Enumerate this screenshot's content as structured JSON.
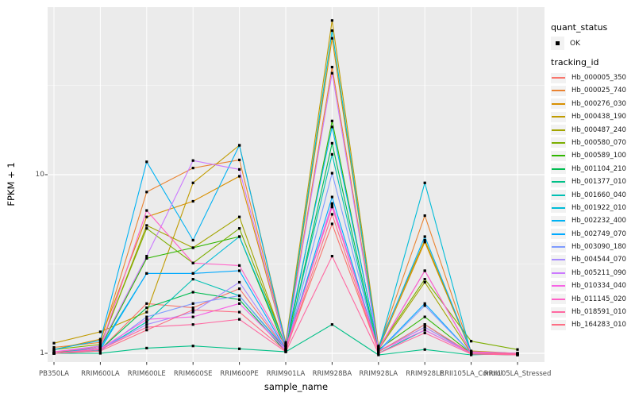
{
  "chart_data": {
    "type": "line",
    "title": "",
    "xlabel": "sample_name",
    "ylabel": "FPKM + 1",
    "y_scale": "log10",
    "y_tick_labels": [
      "1",
      "10"
    ],
    "y_tick_values": [
      1,
      10
    ],
    "y_minor_tick_values": [
      3.162,
      31.62
    ],
    "ylim": [
      0.89,
      87
    ],
    "grid": "on",
    "legend_position": "right",
    "categories": [
      "PB350LA",
      "RRIM600LA",
      "RRIM600LE",
      "RRIM600SE",
      "RRIM600PE",
      "RRIM901LA",
      "RRIM928BA",
      "RRIM928LA",
      "RRIM928LE",
      "RRII105LA_Control",
      "RRII105LA_Stressed"
    ],
    "legend": {
      "quant_status_title": "quant_status",
      "quant_status_items": [
        {
          "label": "OK",
          "shape": "black-square-point",
          "color": "#000000"
        }
      ],
      "tracking_id_title": "tracking_id"
    },
    "series": [
      {
        "tracking_id": "Hb_000005_350",
        "quant_status": "OK",
        "color": "#F8766D",
        "values": [
          1.02,
          1.05,
          1.9,
          1.8,
          2.3,
          1.05,
          5.3,
          1.03,
          1.4,
          1.0,
          0.98
        ]
      },
      {
        "tracking_id": "Hb_000025_740",
        "quant_status": "OK",
        "color": "#EA8331",
        "values": [
          1.08,
          1.15,
          8.0,
          10.9,
          12.1,
          1.12,
          40,
          1.08,
          5.9,
          1.02,
          1.0
        ]
      },
      {
        "tracking_id": "Hb_000276_030",
        "quant_status": "OK",
        "color": "#D89000",
        "values": [
          1.05,
          1.2,
          5.8,
          7.1,
          9.8,
          1.1,
          58,
          1.06,
          4.2,
          1.02,
          0.99
        ]
      },
      {
        "tracking_id": "Hb_000438_190",
        "quant_status": "OK",
        "color": "#C09B00",
        "values": [
          1.14,
          1.32,
          1.7,
          9.0,
          14.6,
          1.15,
          73,
          1.1,
          4.3,
          1.03,
          1.0
        ]
      },
      {
        "tracking_id": "Hb_000487_240",
        "quant_status": "OK",
        "color": "#A3A500",
        "values": [
          1.0,
          1.1,
          5.2,
          3.9,
          5.8,
          1.08,
          6.8,
          1.05,
          2.5,
          1.0,
          0.98
        ]
      },
      {
        "tracking_id": "Hb_000580_070",
        "quant_status": "OK",
        "color": "#7CAE00",
        "values": [
          1.05,
          1.12,
          5.0,
          3.2,
          5.0,
          1.1,
          6.6,
          1.07,
          2.6,
          1.17,
          1.05
        ]
      },
      {
        "tracking_id": "Hb_000589_100",
        "quant_status": "OK",
        "color": "#2FB600",
        "values": [
          1.0,
          1.08,
          3.4,
          3.9,
          4.5,
          1.05,
          20,
          1.05,
          1.6,
          1.0,
          0.99
        ]
      },
      {
        "tracking_id": "Hb_001104_210",
        "quant_status": "OK",
        "color": "#00BC51",
        "values": [
          1.0,
          1.05,
          1.8,
          2.2,
          2.0,
          1.02,
          15,
          1.02,
          1.45,
          0.99,
          0.98
        ]
      },
      {
        "tracking_id": "Hb_001377_010",
        "quant_status": "OK",
        "color": "#00C087",
        "values": [
          1.0,
          1.0,
          1.07,
          1.1,
          1.06,
          1.02,
          1.45,
          0.98,
          1.05,
          0.98,
          1.0
        ]
      },
      {
        "tracking_id": "Hb_001660_040",
        "quant_status": "OK",
        "color": "#00C0B4",
        "values": [
          1.0,
          1.04,
          1.5,
          2.6,
          2.1,
          1.05,
          13,
          1.0,
          1.35,
          1.0,
          0.99
        ]
      },
      {
        "tracking_id": "Hb_001922_010",
        "quant_status": "OK",
        "color": "#00BCD8",
        "values": [
          1.0,
          1.08,
          2.8,
          2.8,
          4.5,
          1.1,
          64,
          1.05,
          9.0,
          1.0,
          1.0
        ]
      },
      {
        "tracking_id": "Hb_002232_400",
        "quant_status": "OK",
        "color": "#00B2F3",
        "values": [
          1.05,
          1.18,
          11.8,
          4.3,
          14.6,
          1.12,
          18.5,
          1.08,
          4.5,
          1.02,
          1.0
        ]
      },
      {
        "tracking_id": "Hb_002749_070",
        "quant_status": "OK",
        "color": "#00A9FF",
        "values": [
          1.0,
          1.05,
          2.8,
          2.8,
          2.9,
          1.05,
          7.5,
          1.03,
          1.9,
          1.0,
          0.99
        ]
      },
      {
        "tracking_id": "Hb_003090_180",
        "quant_status": "OK",
        "color": "#7F9BFF",
        "values": [
          1.0,
          1.03,
          1.6,
          1.9,
          2.1,
          1.03,
          10.2,
          1.02,
          1.85,
          1.0,
          0.98
        ]
      },
      {
        "tracking_id": "Hb_004544_070",
        "quant_status": "OK",
        "color": "#A88BFF",
        "values": [
          1.0,
          1.05,
          1.45,
          1.7,
          2.5,
          1.05,
          6.9,
          1.03,
          1.4,
          1.0,
          0.99
        ]
      },
      {
        "tracking_id": "Hb_005211_090",
        "quant_status": "OK",
        "color": "#CB79FF",
        "values": [
          1.02,
          1.1,
          3.5,
          12.0,
          10.7,
          1.1,
          37,
          1.06,
          2.9,
          1.01,
          1.0
        ]
      },
      {
        "tracking_id": "Hb_010334_040",
        "quant_status": "OK",
        "color": "#F763E5",
        "values": [
          1.0,
          1.06,
          1.55,
          1.6,
          1.9,
          1.05,
          6.8,
          1.03,
          1.35,
          1.0,
          0.99
        ]
      },
      {
        "tracking_id": "Hb_011145_020",
        "quant_status": "OK",
        "color": "#FF61C7",
        "values": [
          1.02,
          1.08,
          6.3,
          3.2,
          3.1,
          1.08,
          6.6,
          1.05,
          2.9,
          1.02,
          1.0
        ]
      },
      {
        "tracking_id": "Hb_018591_010",
        "quant_status": "OK",
        "color": "#FF68A1",
        "values": [
          1.0,
          1.05,
          1.4,
          1.45,
          1.55,
          1.02,
          3.5,
          1.0,
          1.3,
          0.99,
          0.98
        ]
      },
      {
        "tracking_id": "Hb_164283_010",
        "quant_status": "OK",
        "color": "#FD6F85",
        "values": [
          1.0,
          1.03,
          1.35,
          1.75,
          1.7,
          1.03,
          6.0,
          1.02,
          1.45,
          1.0,
          0.99
        ]
      }
    ]
  },
  "colors": {
    "panel_background": "#EBEBEB",
    "grid_major": "#FFFFFF",
    "grid_minor": "#F7F7F7",
    "tick_mark": "#333333",
    "tick_text": "#4D4D4D",
    "axis_title_text": "#000000",
    "point": "#000000",
    "legend_key_background": "#F2F2F2"
  }
}
